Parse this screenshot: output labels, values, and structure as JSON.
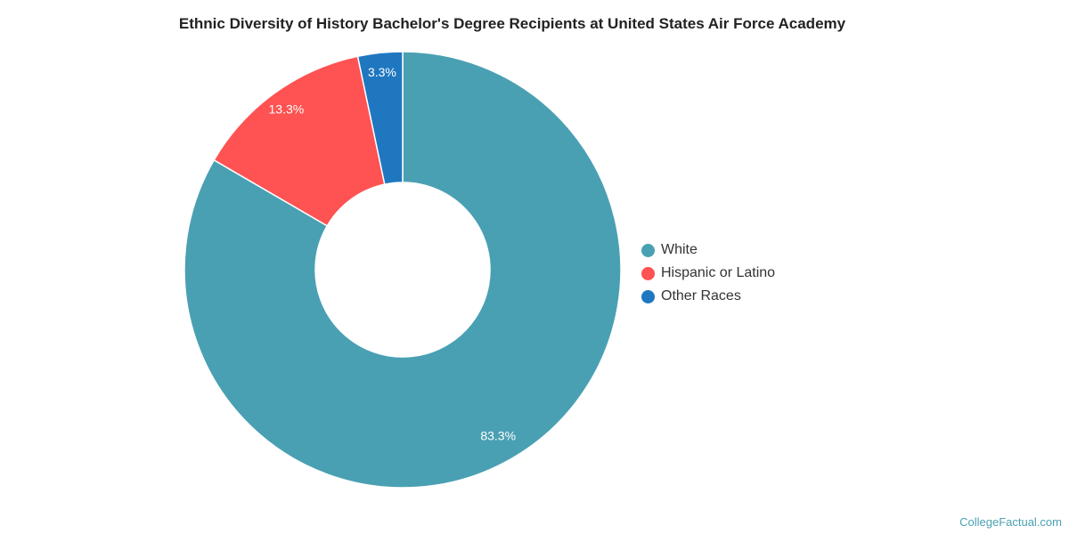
{
  "chart_data": {
    "type": "pie",
    "donut": true,
    "title": "Ethnic Diversity of History Bachelor's Degree Recipients at United States Air Force Academy",
    "categories": [
      "White",
      "Hispanic or Latino",
      "Other Races"
    ],
    "values": [
      83.3,
      13.3,
      3.3
    ],
    "labels": [
      "83.3%",
      "13.3%",
      "3.3%"
    ],
    "colors": [
      "#4aa0b3",
      "#ff5252",
      "#1f77c0"
    ],
    "legend_position": "right"
  },
  "credit": "CollegeFactual.com"
}
